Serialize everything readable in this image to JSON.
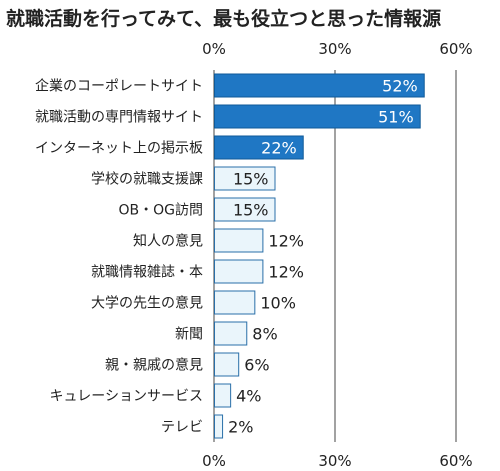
{
  "chart_data": {
    "type": "bar",
    "orientation": "horizontal",
    "title": "就職活動を行ってみて、最も役立つと思った情報源",
    "categories": [
      "企業のコーポレートサイト",
      "就職活動の専門情報サイト",
      "インターネット上の掲示板",
      "学校の就職支援課",
      "OB・OG訪問",
      "知人の意見",
      "就職情報雑誌・本",
      "大学の先生の意見",
      "新聞",
      "親・親戚の意見",
      "キュレーションサービス",
      "テレビ"
    ],
    "values": [
      52,
      51,
      22,
      15,
      15,
      12,
      12,
      10,
      8,
      6,
      4,
      2
    ],
    "value_labels": [
      "52%",
      "51%",
      "22%",
      "15%",
      "15%",
      "12%",
      "12%",
      "10%",
      "8%",
      "6%",
      "4%",
      "2%"
    ],
    "xlim": [
      0,
      60
    ],
    "xticks": [
      0,
      30,
      60
    ],
    "xtick_labels": [
      "0%",
      "30%",
      "60%"
    ],
    "axis_position": "top and bottom",
    "grid": true,
    "colors": {
      "highlight_fill": "#1f77c4",
      "highlight_edge": "#0f5a98",
      "normal_fill": "#eaf5fb",
      "normal_edge": "#2a6fa8",
      "highlight_label": "#ffffff",
      "normal_label": "#222222",
      "grid": "#444444"
    },
    "highlighted_count": 3
  }
}
